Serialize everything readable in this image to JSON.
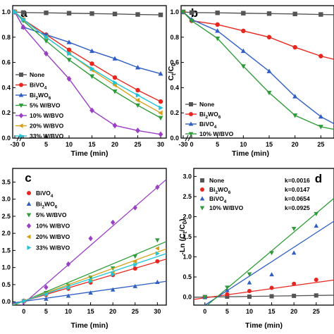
{
  "chart_data": [
    {
      "panel": "a",
      "type": "line",
      "xlabel": "Time (min)",
      "ylabel": "",
      "x": [
        -30,
        0,
        5,
        10,
        15,
        20,
        25,
        30
      ],
      "xticks": [
        "-30",
        "0",
        "5",
        "10",
        "15",
        "20",
        "25",
        "30"
      ],
      "yticks": [
        "0.0",
        "0.2",
        "0.4",
        "0.6",
        "0.8",
        "1.0"
      ],
      "xlim": [
        -30,
        30
      ],
      "ylim": [
        0,
        1.05
      ],
      "axis_break": true,
      "legend_position": "bottom-left",
      "series": [
        {
          "name": "None",
          "marker": "square",
          "color": "#555555",
          "values": [
            1.0,
            0.995,
            0.993,
            0.99,
            0.987,
            0.984,
            0.98,
            0.977
          ]
        },
        {
          "name": "BiVO4",
          "marker": "circle",
          "color": "#e8261f",
          "values": [
            1.0,
            0.94,
            0.82,
            0.7,
            0.59,
            0.48,
            0.38,
            0.29
          ]
        },
        {
          "name": "Bi2WO6",
          "marker": "triangle-up",
          "color": "#2f5ec4",
          "values": [
            1.0,
            0.88,
            0.82,
            0.76,
            0.69,
            0.63,
            0.56,
            0.51
          ]
        },
        {
          "name": "5% W/BVO",
          "marker": "triangle-down",
          "color": "#2e9c38",
          "values": [
            1.0,
            0.93,
            0.77,
            0.62,
            0.49,
            0.37,
            0.26,
            0.16
          ]
        },
        {
          "name": "10% W/BVO",
          "marker": "diamond",
          "color": "#9b3fc4",
          "values": [
            1.0,
            0.88,
            0.67,
            0.47,
            0.22,
            0.1,
            0.06,
            0.03
          ]
        },
        {
          "name": "20% W/BVO",
          "marker": "triangle-left",
          "color": "#d4a017",
          "values": [
            1.0,
            0.94,
            0.8,
            0.67,
            0.54,
            0.42,
            0.3,
            0.2
          ]
        },
        {
          "name": "33% W/BVO",
          "marker": "triangle-right",
          "color": "#20c4d8",
          "values": [
            1.0,
            0.94,
            0.8,
            0.67,
            0.55,
            0.44,
            0.34,
            0.24
          ]
        }
      ]
    },
    {
      "panel": "b",
      "type": "line",
      "xlabel": "Time (min)",
      "ylabel": "Ct/C0",
      "x": [
        -30,
        0,
        5,
        10,
        15,
        20,
        25,
        30
      ],
      "xticks": [
        "-30",
        "0",
        "5",
        "10",
        "15",
        "20",
        "25"
      ],
      "yticks": [
        "0.0",
        "0.2",
        "0.4",
        "0.6",
        "0.8",
        "1.0"
      ],
      "xlim": [
        -30,
        30
      ],
      "ylim": [
        0,
        1.05
      ],
      "axis_break": true,
      "legend_position": "bottom-left",
      "series": [
        {
          "name": "None",
          "marker": "square",
          "color": "#555555",
          "values": [
            1.0,
            0.995,
            0.993,
            0.99,
            0.987,
            0.984,
            0.98,
            0.977
          ]
        },
        {
          "name": "Bi2WO6",
          "marker": "circle",
          "color": "#e8261f",
          "values": [
            1.0,
            0.93,
            0.9,
            0.85,
            0.8,
            0.72,
            0.65,
            0.6
          ]
        },
        {
          "name": "BiVO4",
          "marker": "triangle-up",
          "color": "#2f5ec4",
          "values": [
            1.0,
            0.94,
            0.85,
            0.69,
            0.53,
            0.33,
            0.17,
            0.06
          ]
        },
        {
          "name": "10% W/BVO",
          "marker": "triangle-down",
          "color": "#2e9c38",
          "values": [
            1.0,
            0.93,
            0.79,
            0.57,
            0.36,
            0.18,
            0.09,
            0.05
          ]
        }
      ]
    },
    {
      "panel": "c",
      "type": "scatter",
      "xlabel": "Time (min)",
      "ylabel": "",
      "xticks": [
        "0",
        "5",
        "10",
        "15",
        "20",
        "25",
        "30"
      ],
      "yticks": [
        "0.0",
        "0.5",
        "1.0",
        "1.5",
        "2.0",
        "2.5",
        "3.0",
        "3.5"
      ],
      "xlim": [
        -2.5,
        32
      ],
      "ylim": [
        -0.1,
        3.9
      ],
      "legend_position": "top-left",
      "x": [
        0,
        5,
        10,
        15,
        20,
        25,
        30
      ],
      "series": [
        {
          "name": "BiVO4",
          "marker": "circle",
          "color": "#e8261f",
          "values": [
            0.02,
            0.2,
            0.38,
            0.56,
            0.78,
            0.97,
            1.18
          ],
          "fit": [
            0.02,
            1.17
          ]
        },
        {
          "name": "Bi2WO6",
          "marker": "triangle-up",
          "color": "#2f5ec4",
          "values": [
            0.01,
            0.08,
            0.17,
            0.26,
            0.35,
            0.45,
            0.57
          ],
          "fit": [
            0.01,
            0.56
          ]
        },
        {
          "name": "5% W/BVO",
          "marker": "triangle-down",
          "color": "#2e9c38",
          "values": [
            0.02,
            0.26,
            0.48,
            0.71,
            0.98,
            1.33,
            1.8
          ],
          "fit": [
            0.02,
            1.65
          ]
        },
        {
          "name": "10% W/BVO",
          "marker": "diamond",
          "color": "#9b3fc4",
          "values": [
            0.02,
            0.42,
            1.1,
            1.85,
            2.32,
            2.75,
            3.35
          ],
          "fit": [
            -0.05,
            3.35
          ]
        },
        {
          "name": "20% W/BVO",
          "marker": "triangle-left",
          "color": "#d4a017",
          "values": [
            0.02,
            0.22,
            0.42,
            0.62,
            0.84,
            1.17,
            1.56
          ],
          "fit": [
            0.02,
            1.45
          ]
        },
        {
          "name": "33% W/BVO",
          "marker": "triangle-right",
          "color": "#20c4d8",
          "values": [
            0.02,
            0.21,
            0.4,
            0.6,
            0.8,
            1.08,
            1.41
          ],
          "fit": [
            0.02,
            1.32
          ]
        }
      ]
    },
    {
      "panel": "d",
      "type": "scatter",
      "xlabel": "Time (min)",
      "ylabel": "-Ln (Ct/C0)",
      "xticks": [
        "0",
        "5",
        "10",
        "15",
        "20",
        "25"
      ],
      "yticks": [
        "0.0",
        "0.5",
        "1.0",
        "1.5",
        "2.0",
        "2.5",
        "3.0"
      ],
      "xlim": [
        -2.5,
        29
      ],
      "ylim": [
        -0.2,
        3.2
      ],
      "legend_position": "top-left",
      "x": [
        0,
        5,
        10,
        15,
        20,
        25,
        30
      ],
      "series": [
        {
          "name": "None",
          "k": "k=0.0016",
          "marker": "square",
          "color": "#555555",
          "values": [
            0.0,
            0.01,
            0.01,
            0.02,
            0.03,
            0.04,
            0.05
          ],
          "fit": [
            0.0,
            0.048
          ]
        },
        {
          "name": "Bi2WO6",
          "k": "k=0.0147",
          "marker": "circle",
          "color": "#e8261f",
          "values": [
            0.0,
            0.07,
            0.15,
            0.23,
            0.33,
            0.43,
            0.52
          ],
          "fit": [
            -0.02,
            0.44
          ]
        },
        {
          "name": "BiVO4",
          "k": "k=0.0654",
          "marker": "triangle-up",
          "color": "#2f5ec4",
          "values": [
            0.0,
            0.17,
            0.36,
            0.56,
            1.1,
            1.77,
            2.6
          ],
          "fit": [
            -0.2,
            1.96
          ]
        },
        {
          "name": "10% W/BVO",
          "k": "k=0.0925",
          "marker": "triangle-down",
          "color": "#2e9c38",
          "values": [
            0.0,
            0.24,
            0.57,
            1.1,
            1.7,
            2.07,
            2.98
          ],
          "fit": [
            -0.25,
            2.55
          ]
        }
      ]
    }
  ],
  "panel_letters": [
    "a",
    "b",
    "c",
    "d"
  ]
}
